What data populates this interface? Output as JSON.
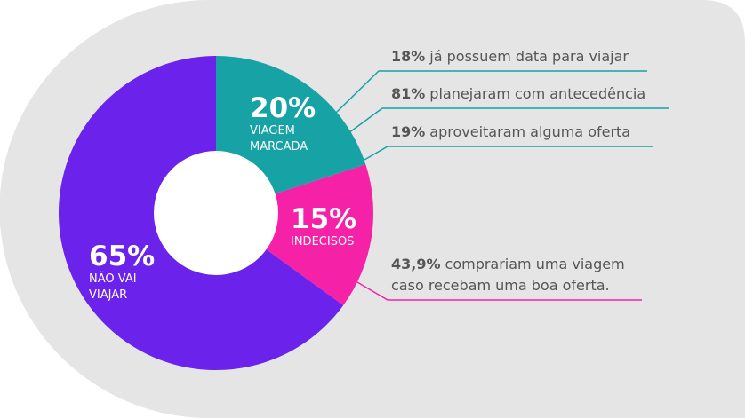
{
  "chart_data": {
    "type": "pie",
    "donut": true,
    "categories": [
      "VIAGEM MARCADA",
      "INDECISOS",
      "NÃO VAI VIAJAR"
    ],
    "values": [
      20,
      15,
      65
    ],
    "value_labels": [
      "20%",
      "15%",
      "65%"
    ],
    "colors": [
      "#17a2a6",
      "#f522a8",
      "#6b22ea"
    ],
    "annotations": [
      {
        "highlight": "18%",
        "text": "já possuem data para viajar"
      },
      {
        "highlight": "81%",
        "text": "planejaram com antecedência"
      },
      {
        "highlight": "19%",
        "text": "aproveitaram alguma oferta"
      },
      {
        "highlight": "43,9%",
        "text": "comprariam uma viagem caso recebam uma boa oferta."
      }
    ]
  }
}
